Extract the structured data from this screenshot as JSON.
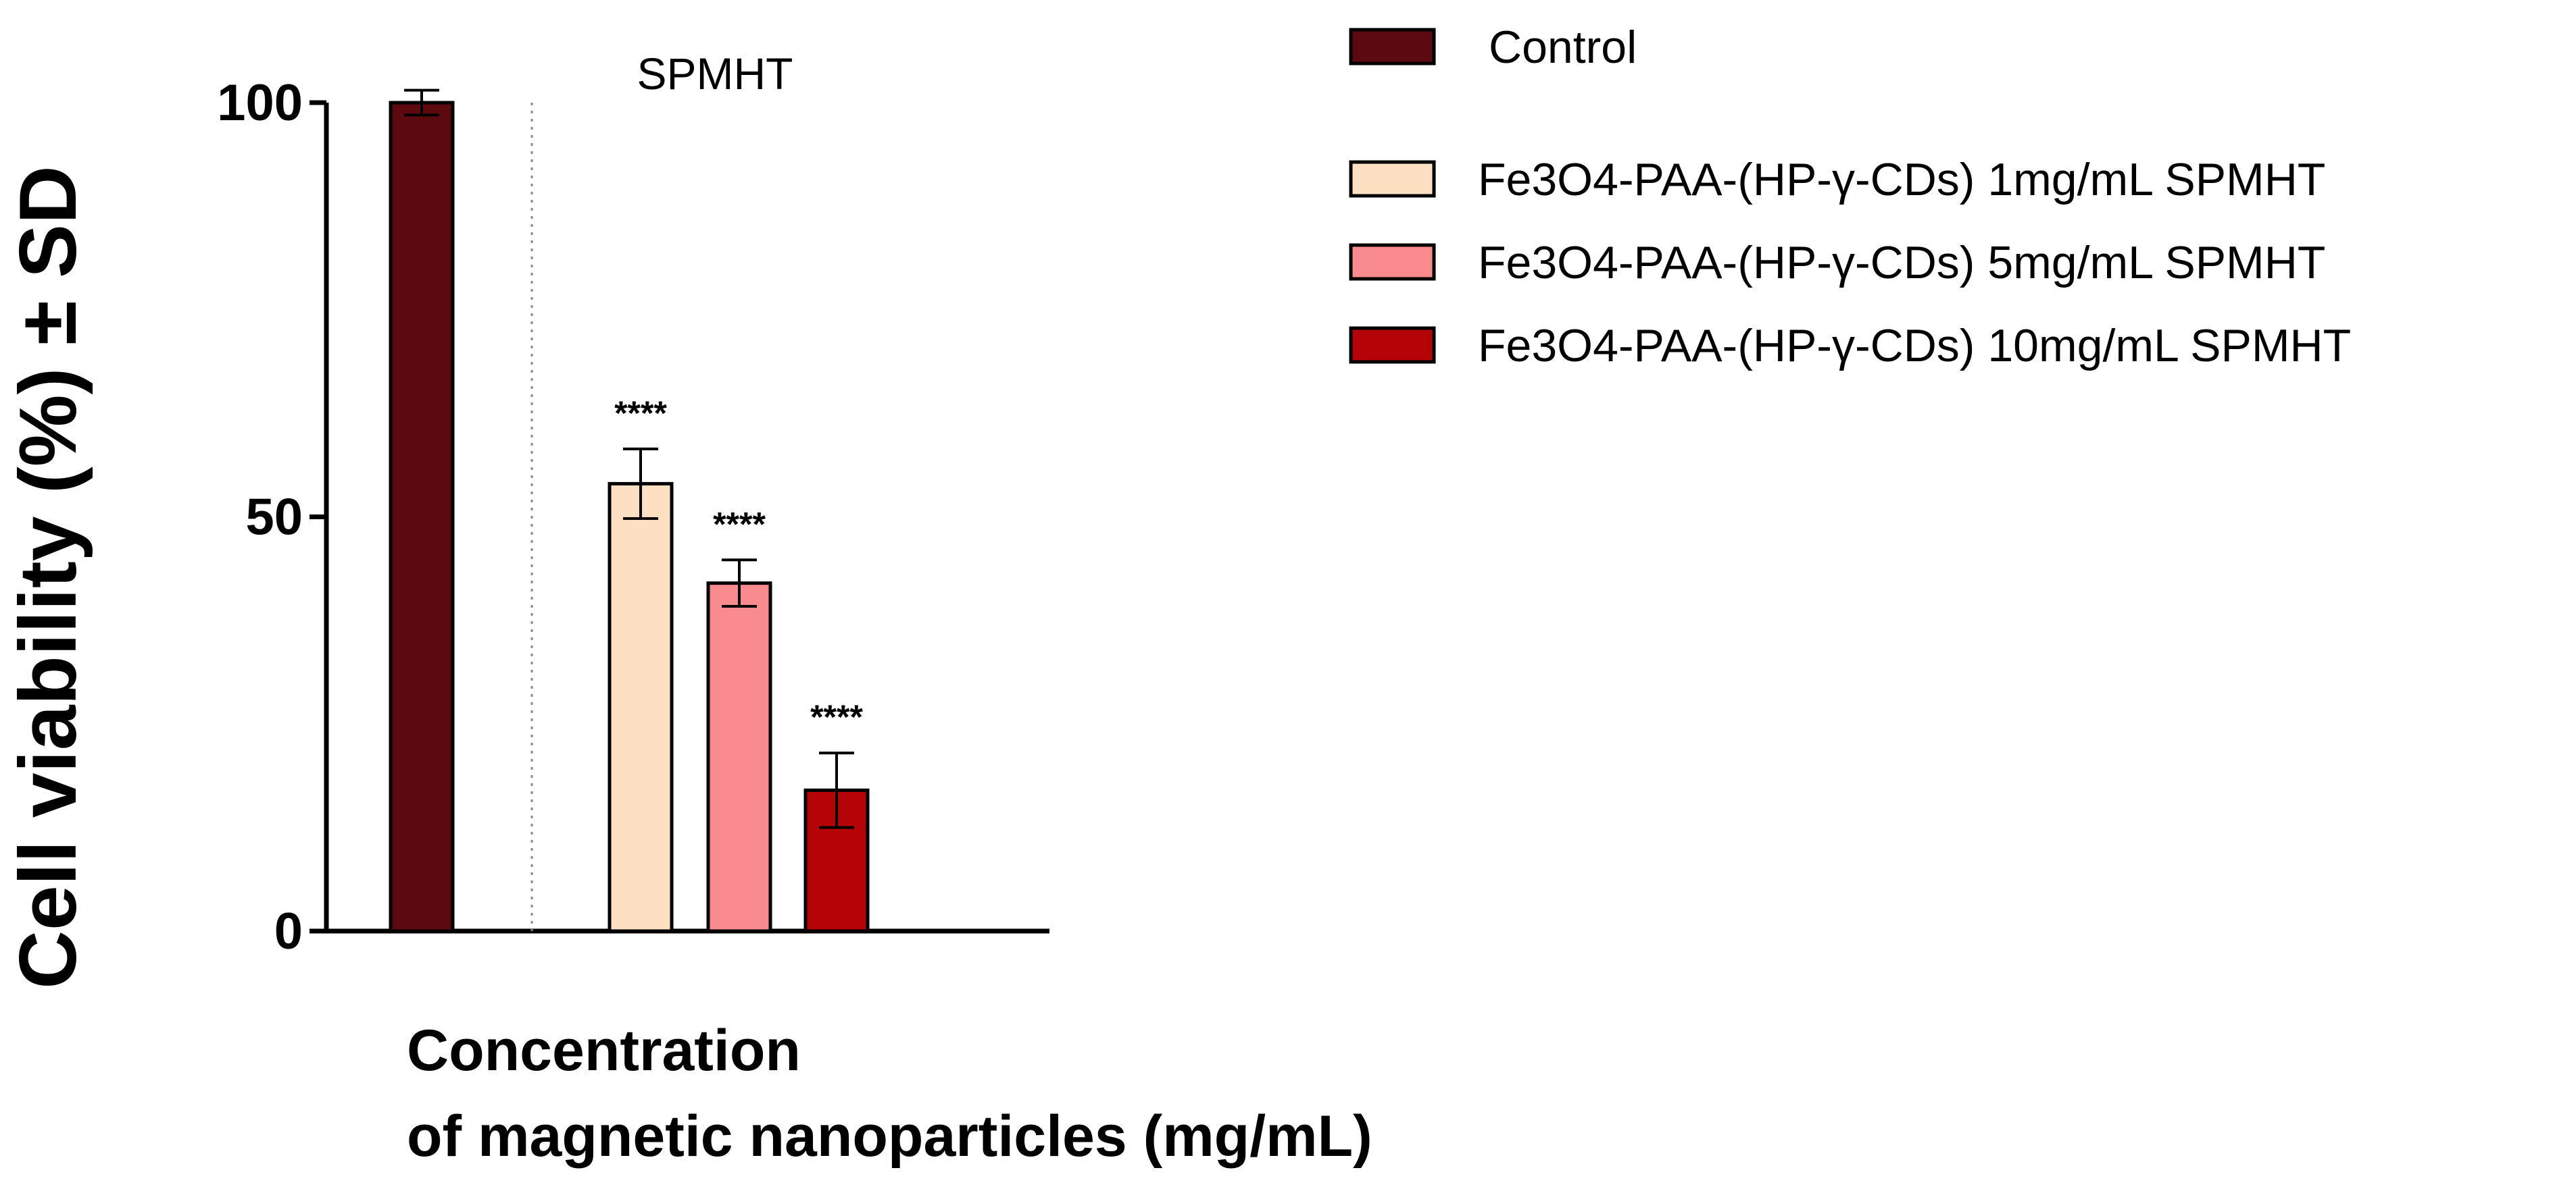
{
  "chart_data": {
    "type": "bar",
    "ylabel": "Cell viability (%)  ± SD",
    "xlabel_lines": [
      "Concentration",
      "of magnetic nanoparticles (mg/mL)"
    ],
    "ylim": [
      0,
      100
    ],
    "yticks": [
      0,
      50,
      100
    ],
    "yticks_labels": [
      "0",
      "50",
      "100"
    ],
    "group_label": "SPMHT",
    "grid": false,
    "legend_position": "top-right",
    "series": [
      {
        "name": "Control",
        "value": 100,
        "error": 1.5,
        "color": "#5c0a10",
        "significance": ""
      },
      {
        "name": "Fe3O4-PAA-(HP-γ-CDs) 1mg/mL SPMHT",
        "value": 54,
        "error": 4.2,
        "color": "#fde0c2",
        "significance": "****"
      },
      {
        "name": "Fe3O4-PAA-(HP-γ-CDs) 5mg/mL SPMHT",
        "value": 42,
        "error": 2.8,
        "color": "#f98b8e",
        "significance": "****"
      },
      {
        "name": "Fe3O4-PAA-(HP-γ-CDs) 10mg/mL SPMHT",
        "value": 17,
        "error": 4.5,
        "color": "#b50408",
        "significance": "****"
      }
    ]
  }
}
